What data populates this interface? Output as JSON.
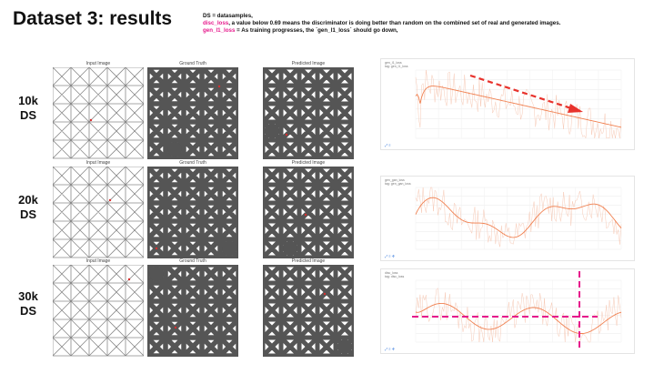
{
  "slide": {
    "title": "Dataset 3: results",
    "legend": {
      "line1": "DS = datasamples,",
      "line2_key": "disc_loss",
      "line2_text": ", a value below 0.69 means the discriminator is doing better than random on the combined set of real and generated images.",
      "line3_key": "gen_l1_loss",
      "line3_text": " = As training progresses, the `gen_l1_loss` should go down,"
    },
    "colors": {
      "accent_pink": "#e6198c",
      "arrow_red": "#e8322c",
      "curve": "#f08050",
      "lattice": "#555555"
    }
  },
  "panel_captions": {
    "input": "Input Image",
    "truth": "Ground Truth",
    "pred": "Predicted Image"
  },
  "rows": [
    {
      "label_l1": "10k",
      "label_l2": "DS",
      "plot_header": "gen_l1_loss\ntag: gen_l1_loss",
      "annotation": "downward-trend-arrow"
    },
    {
      "label_l1": "20k",
      "label_l2": "DS",
      "plot_header": "gen_gan_loss\ntag: gen_gan_loss",
      "annotation": "none"
    },
    {
      "label_l1": "30k",
      "label_l2": "DS",
      "plot_header": "disc_loss\ntag: disc_loss",
      "annotation": "pink-crosshair"
    }
  ]
}
